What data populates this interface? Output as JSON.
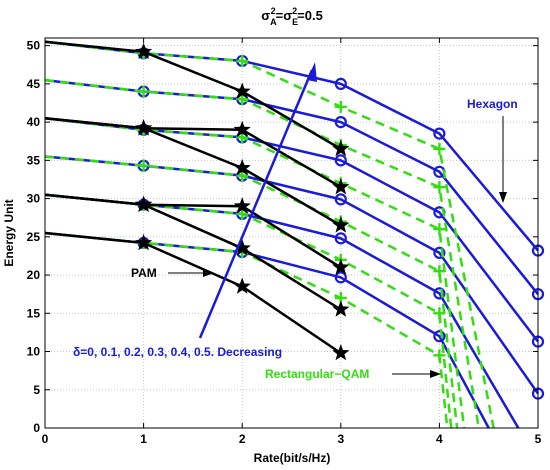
{
  "chart_data": {
    "type": "line",
    "title": {
      "base": "σ",
      "sub_a": "A",
      "sup": "2",
      "mid": "=σ",
      "sub_e": "E",
      "sup2": "2",
      "tail": "=0.5"
    },
    "xlabel": "Rate(bit/s/Hz)",
    "ylabel": "Energy Unit",
    "xlim": [
      0,
      5
    ],
    "ylim": [
      0,
      51
    ],
    "xticks": [
      "0",
      "1",
      "2",
      "3",
      "4",
      "5"
    ],
    "yticks": [
      "0",
      "5",
      "10",
      "15",
      "20",
      "25",
      "30",
      "35",
      "40",
      "45",
      "50"
    ],
    "grid": true,
    "colors": {
      "pam": "#000000",
      "hexagon": "#1a1adb",
      "qam": "#33dd11",
      "arrow": "#1a1adb"
    },
    "series": [
      {
        "group": "pam",
        "marker": "star",
        "values": [
          [
            0,
            50.5
          ],
          [
            1,
            49.2
          ],
          [
            2,
            44.0
          ],
          [
            3,
            36.5
          ]
        ]
      },
      {
        "group": "pam",
        "marker": "star",
        "values": [
          [
            0,
            40.5
          ],
          [
            1,
            39.2
          ],
          [
            2,
            39.0
          ],
          [
            3,
            31.5
          ]
        ]
      },
      {
        "group": "pam",
        "marker": "star",
        "values": [
          [
            0,
            40.5
          ],
          [
            1,
            39.2
          ],
          [
            2,
            34.0
          ],
          [
            3,
            26.5
          ]
        ]
      },
      {
        "group": "pam",
        "marker": "star",
        "values": [
          [
            0,
            30.5
          ],
          [
            1,
            29.2
          ],
          [
            2,
            29.0
          ],
          [
            3,
            21.0
          ]
        ]
      },
      {
        "group": "pam",
        "marker": "star",
        "values": [
          [
            0,
            30.5
          ],
          [
            1,
            29.2
          ],
          [
            2,
            23.5
          ],
          [
            3,
            15.5
          ]
        ]
      },
      {
        "group": "pam",
        "marker": "star",
        "values": [
          [
            0,
            25.5
          ],
          [
            1,
            24.2
          ],
          [
            2,
            18.5
          ],
          [
            3,
            9.8
          ]
        ]
      },
      {
        "group": "hexagon",
        "marker": "circle",
        "values": [
          [
            0,
            50.5
          ],
          [
            1,
            49.0
          ],
          [
            2,
            48.0
          ],
          [
            3,
            45.0
          ],
          [
            4,
            38.5
          ],
          [
            5,
            23.2
          ]
        ]
      },
      {
        "group": "hexagon",
        "marker": "circle",
        "values": [
          [
            0,
            45.5
          ],
          [
            1,
            44.0
          ],
          [
            2,
            43.0
          ],
          [
            3,
            40.0
          ],
          [
            4,
            33.5
          ],
          [
            5,
            17.5
          ]
        ]
      },
      {
        "group": "hexagon",
        "marker": "circle",
        "values": [
          [
            0,
            40.5
          ],
          [
            1,
            39.0
          ],
          [
            2,
            38.0
          ],
          [
            3,
            35.0
          ],
          [
            4,
            28.2
          ],
          [
            5,
            11.3
          ]
        ]
      },
      {
        "group": "hexagon",
        "marker": "circle",
        "values": [
          [
            0,
            35.5
          ],
          [
            1,
            34.3
          ],
          [
            2,
            33.0
          ],
          [
            3,
            29.9
          ],
          [
            4,
            22.9
          ],
          [
            5,
            4.5
          ]
        ]
      },
      {
        "group": "hexagon",
        "marker": "circle",
        "values": [
          [
            0,
            30.5
          ],
          [
            1,
            29.2
          ],
          [
            2,
            28.0
          ],
          [
            3,
            24.8
          ],
          [
            4,
            17.6
          ],
          [
            4.8,
            0
          ]
        ]
      },
      {
        "group": "hexagon",
        "marker": "circle",
        "values": [
          [
            0,
            25.5
          ],
          [
            1,
            24.2
          ],
          [
            2,
            23.0
          ],
          [
            3,
            19.7
          ],
          [
            4,
            12.0
          ],
          [
            4.5,
            0
          ]
        ]
      },
      {
        "group": "qam",
        "marker": "plus",
        "values": [
          [
            0,
            50.5
          ],
          [
            1,
            49.0
          ],
          [
            2,
            48.0
          ],
          [
            3,
            42.0
          ],
          [
            4,
            36.5
          ],
          [
            4.55,
            0
          ]
        ]
      },
      {
        "group": "qam",
        "marker": "plus",
        "values": [
          [
            0,
            45.5
          ],
          [
            1,
            44.0
          ],
          [
            2,
            43.0
          ],
          [
            3,
            37.0
          ],
          [
            4,
            31.5
          ],
          [
            4.4,
            0
          ]
        ]
      },
      {
        "group": "qam",
        "marker": "plus",
        "values": [
          [
            0,
            40.5
          ],
          [
            1,
            39.0
          ],
          [
            2,
            38.0
          ],
          [
            3,
            32.0
          ],
          [
            4,
            26.0
          ],
          [
            4.25,
            0
          ]
        ]
      },
      {
        "group": "qam",
        "marker": "plus",
        "values": [
          [
            0,
            35.5
          ],
          [
            1,
            34.3
          ],
          [
            2,
            33.0
          ],
          [
            3,
            27.0
          ],
          [
            4,
            20.5
          ],
          [
            4.18,
            0
          ]
        ]
      },
      {
        "group": "qam",
        "marker": "plus",
        "values": [
          [
            0,
            30.5
          ],
          [
            1,
            29.2
          ],
          [
            2,
            28.0
          ],
          [
            3,
            22.0
          ],
          [
            4,
            15.0
          ],
          [
            4.12,
            0
          ]
        ]
      },
      {
        "group": "qam",
        "marker": "plus",
        "values": [
          [
            0,
            25.5
          ],
          [
            1,
            24.2
          ],
          [
            2,
            23.0
          ],
          [
            3,
            17.0
          ],
          [
            4,
            9.5
          ],
          [
            4.08,
            0
          ]
        ]
      }
    ],
    "annotations": {
      "hexagon": "Hexagon",
      "pam": "PAM",
      "qam": "Rectangular−QAM",
      "delta": "δ=0, 0.1, 0.2, 0.3, 0.4, 0.5. Decreasing"
    }
  }
}
